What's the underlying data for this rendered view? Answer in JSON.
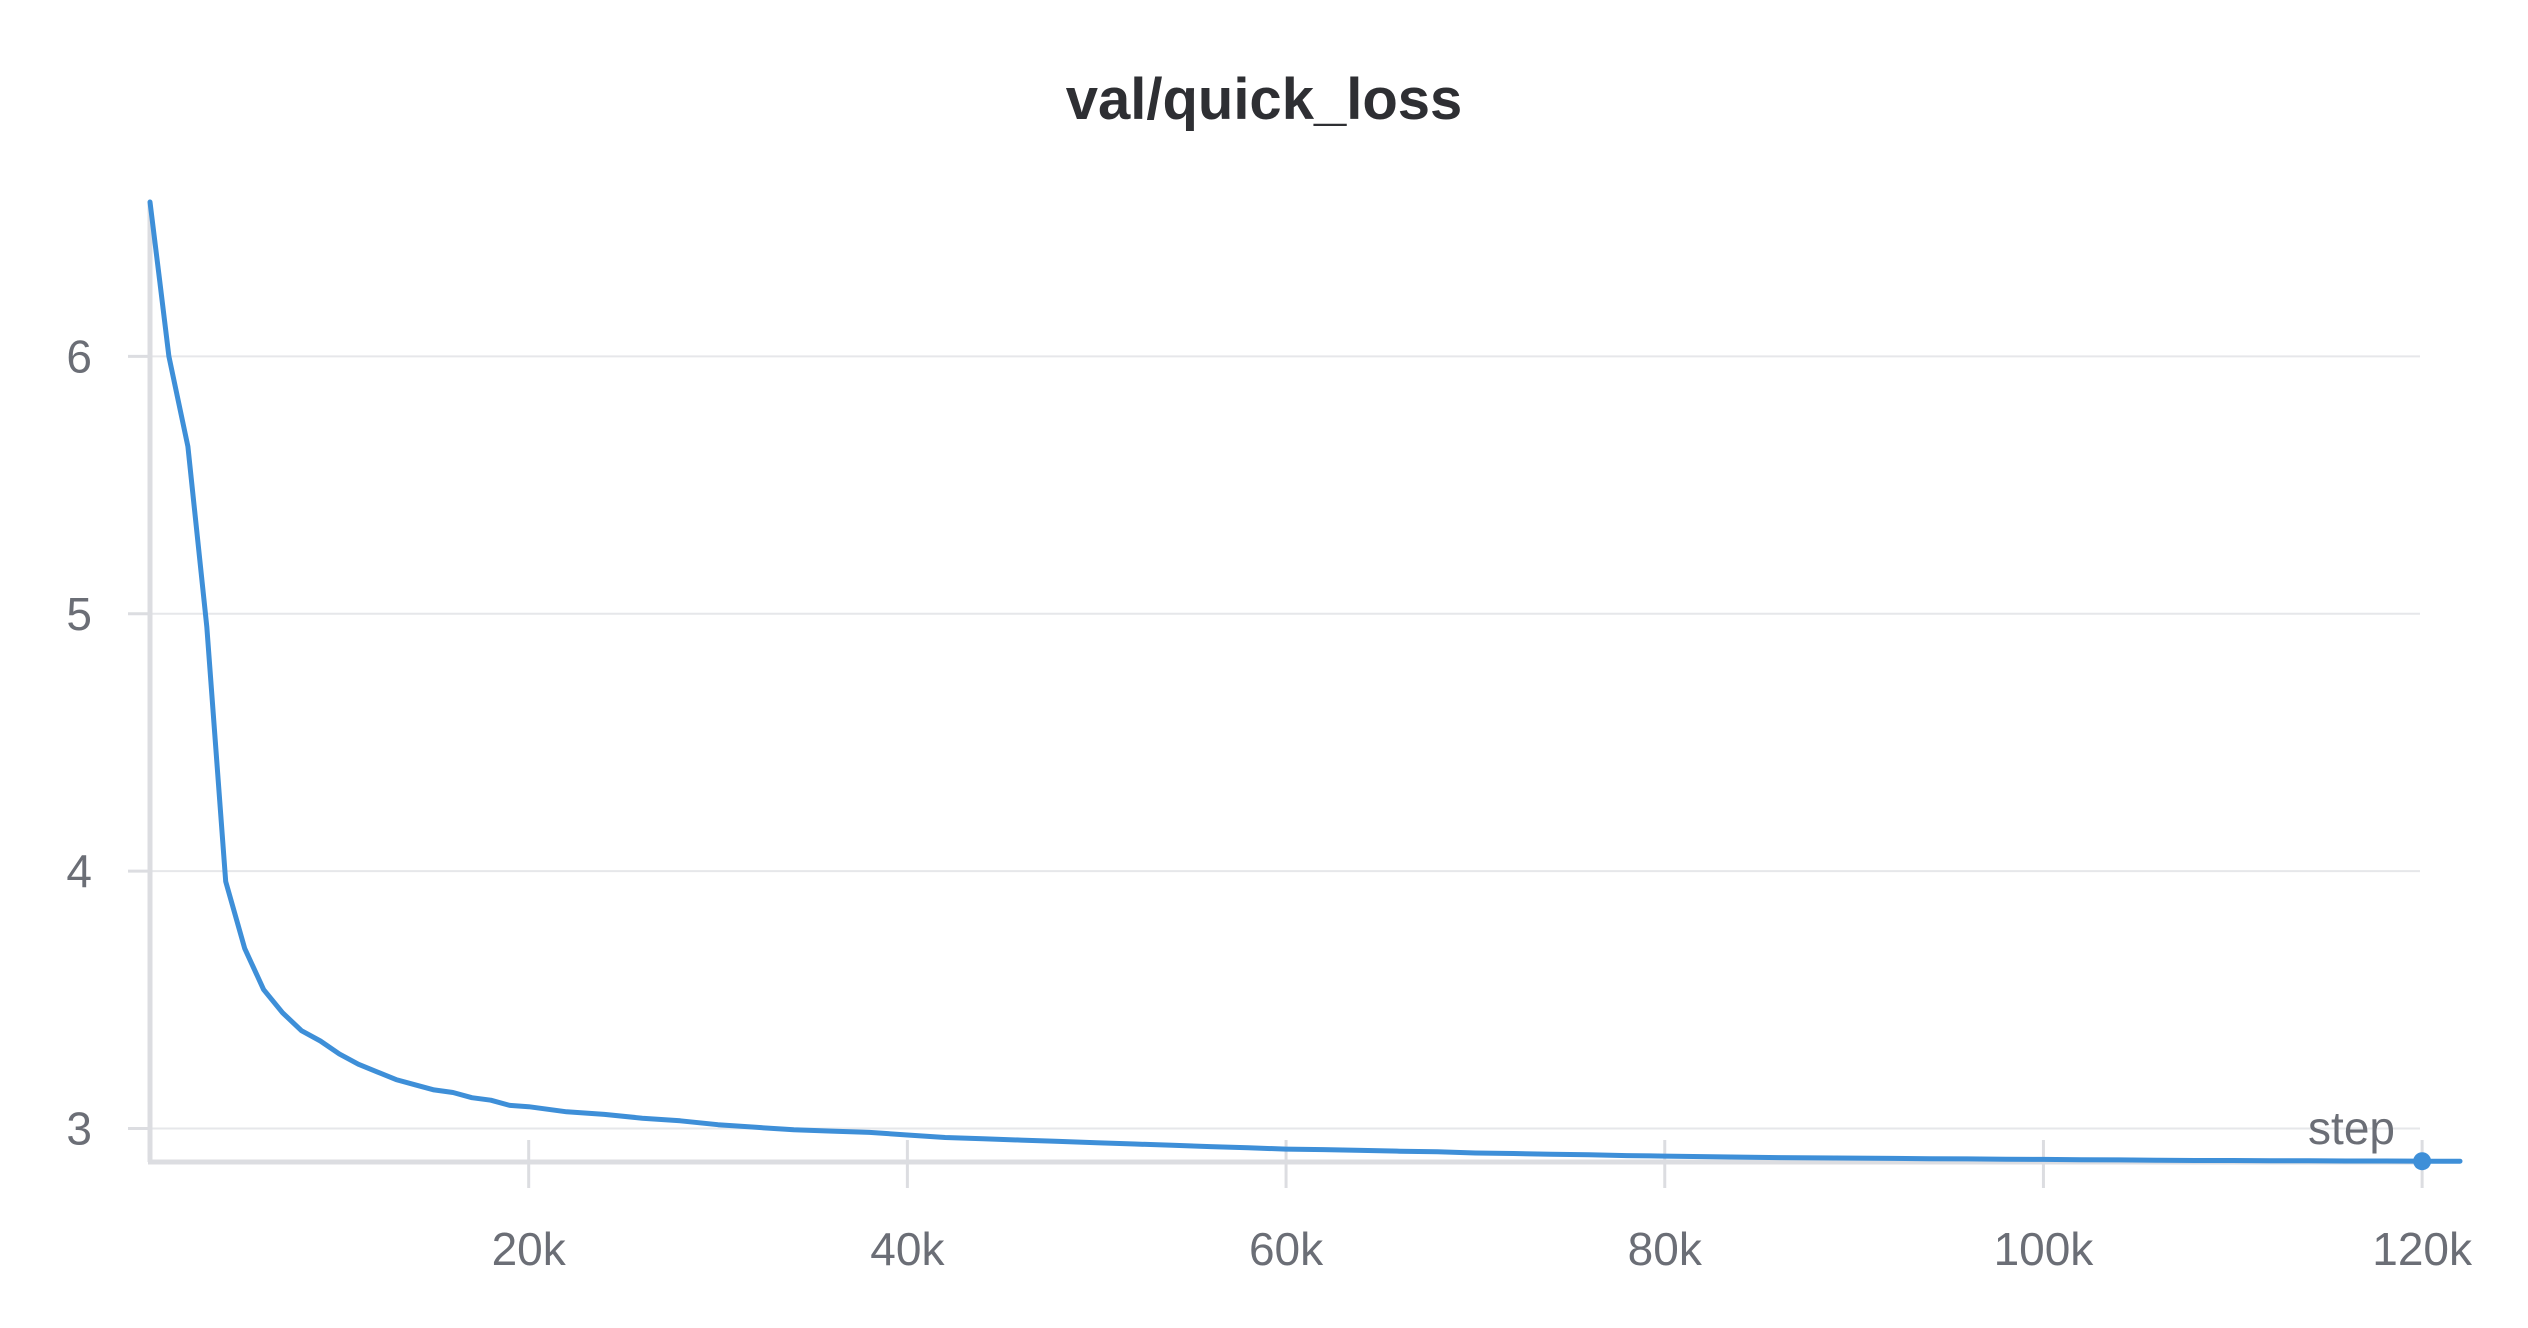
{
  "chart_data": {
    "type": "line",
    "title": "val/quick_loss",
    "xlabel": "step",
    "ylabel": "",
    "xlim": [
      0,
      122000
    ],
    "ylim": [
      2.87,
      6.6
    ],
    "x_ticks": [
      {
        "value": 20000,
        "label": "20k"
      },
      {
        "value": 40000,
        "label": "40k"
      },
      {
        "value": 60000,
        "label": "60k"
      },
      {
        "value": 80000,
        "label": "80k"
      },
      {
        "value": 100000,
        "label": "100k"
      },
      {
        "value": 120000,
        "label": "120k"
      }
    ],
    "y_ticks": [
      {
        "value": 3,
        "label": "3"
      },
      {
        "value": 4,
        "label": "4"
      },
      {
        "value": 5,
        "label": "5"
      },
      {
        "value": 6,
        "label": "6"
      }
    ],
    "grid": true,
    "colors": {
      "series": "#3e8fd8",
      "grid": "#e6e7ea",
      "axis": "#dcdde1",
      "text": "#6b6e76",
      "title": "#2e2f33"
    },
    "series": [
      {
        "x": [
          0,
          500,
          1000,
          2000,
          3000,
          4000,
          5000,
          6000,
          7000,
          8000,
          9000,
          10000,
          11000,
          12000,
          13000,
          14000,
          15000,
          16000,
          17000,
          18000,
          19000,
          20000,
          22000,
          24000,
          26000,
          28000,
          30000,
          32000,
          34000,
          36000,
          38000,
          40000,
          42000,
          44000,
          46000,
          48000,
          50000,
          52000,
          54000,
          56000,
          58000,
          60000,
          62000,
          64000,
          66000,
          68000,
          70000,
          72000,
          74000,
          76000,
          78000,
          80000,
          82000,
          84000,
          86000,
          88000,
          90000,
          92000,
          94000,
          96000,
          98000,
          100000,
          102000,
          104000,
          106000,
          108000,
          110000,
          112000,
          114000,
          116000,
          118000,
          120000,
          122000
        ],
        "y": [
          6.6,
          6.3,
          6.0,
          5.65,
          4.95,
          3.96,
          3.7,
          3.54,
          3.45,
          3.38,
          3.34,
          3.29,
          3.25,
          3.22,
          3.19,
          3.17,
          3.15,
          3.14,
          3.12,
          3.11,
          3.09,
          3.085,
          3.065,
          3.055,
          3.04,
          3.03,
          3.015,
          3.005,
          2.995,
          2.99,
          2.985,
          2.975,
          2.965,
          2.96,
          2.955,
          2.95,
          2.945,
          2.94,
          2.935,
          2.93,
          2.925,
          2.92,
          2.918,
          2.915,
          2.912,
          2.91,
          2.905,
          2.903,
          2.9,
          2.898,
          2.895,
          2.893,
          2.891,
          2.889,
          2.887,
          2.886,
          2.885,
          2.884,
          2.883,
          2.882,
          2.881,
          2.88,
          2.879,
          2.878,
          2.877,
          2.876,
          2.876,
          2.875,
          2.875,
          2.874,
          2.874,
          2.873,
          2.873
        ]
      }
    ]
  }
}
